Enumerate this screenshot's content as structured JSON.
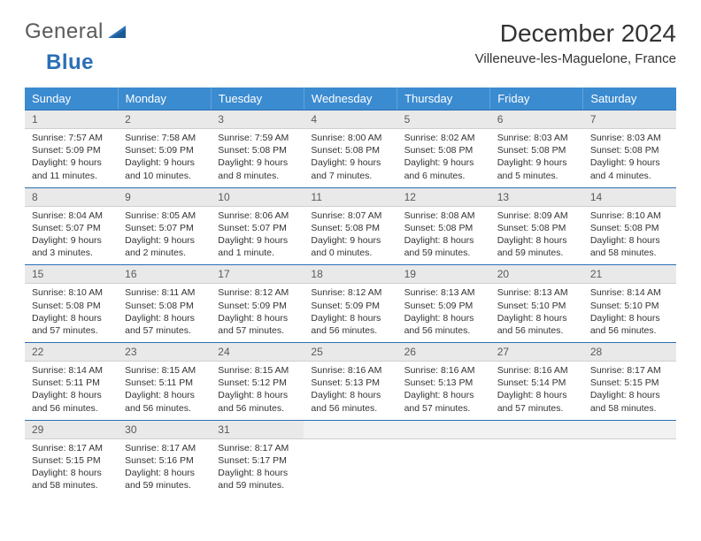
{
  "logo": {
    "text_part1": "General",
    "text_part2": "Blue",
    "icon_color": "#2a6fb5"
  },
  "title": "December 2024",
  "location": "Villeneuve-les-Maguelone, France",
  "colors": {
    "header_bg": "#3b8bd0",
    "header_fg": "#ffffff",
    "daynum_bg": "#e9e9e9",
    "daynum_divider": "#2a6fb5",
    "text": "#333333"
  },
  "day_headers": [
    "Sunday",
    "Monday",
    "Tuesday",
    "Wednesday",
    "Thursday",
    "Friday",
    "Saturday"
  ],
  "weeks": [
    [
      {
        "n": "1",
        "sr": "Sunrise: 7:57 AM",
        "ss": "Sunset: 5:09 PM",
        "dl": "Daylight: 9 hours and 11 minutes."
      },
      {
        "n": "2",
        "sr": "Sunrise: 7:58 AM",
        "ss": "Sunset: 5:09 PM",
        "dl": "Daylight: 9 hours and 10 minutes."
      },
      {
        "n": "3",
        "sr": "Sunrise: 7:59 AM",
        "ss": "Sunset: 5:08 PM",
        "dl": "Daylight: 9 hours and 8 minutes."
      },
      {
        "n": "4",
        "sr": "Sunrise: 8:00 AM",
        "ss": "Sunset: 5:08 PM",
        "dl": "Daylight: 9 hours and 7 minutes."
      },
      {
        "n": "5",
        "sr": "Sunrise: 8:02 AM",
        "ss": "Sunset: 5:08 PM",
        "dl": "Daylight: 9 hours and 6 minutes."
      },
      {
        "n": "6",
        "sr": "Sunrise: 8:03 AM",
        "ss": "Sunset: 5:08 PM",
        "dl": "Daylight: 9 hours and 5 minutes."
      },
      {
        "n": "7",
        "sr": "Sunrise: 8:03 AM",
        "ss": "Sunset: 5:08 PM",
        "dl": "Daylight: 9 hours and 4 minutes."
      }
    ],
    [
      {
        "n": "8",
        "sr": "Sunrise: 8:04 AM",
        "ss": "Sunset: 5:07 PM",
        "dl": "Daylight: 9 hours and 3 minutes."
      },
      {
        "n": "9",
        "sr": "Sunrise: 8:05 AM",
        "ss": "Sunset: 5:07 PM",
        "dl": "Daylight: 9 hours and 2 minutes."
      },
      {
        "n": "10",
        "sr": "Sunrise: 8:06 AM",
        "ss": "Sunset: 5:07 PM",
        "dl": "Daylight: 9 hours and 1 minute."
      },
      {
        "n": "11",
        "sr": "Sunrise: 8:07 AM",
        "ss": "Sunset: 5:08 PM",
        "dl": "Daylight: 9 hours and 0 minutes."
      },
      {
        "n": "12",
        "sr": "Sunrise: 8:08 AM",
        "ss": "Sunset: 5:08 PM",
        "dl": "Daylight: 8 hours and 59 minutes."
      },
      {
        "n": "13",
        "sr": "Sunrise: 8:09 AM",
        "ss": "Sunset: 5:08 PM",
        "dl": "Daylight: 8 hours and 59 minutes."
      },
      {
        "n": "14",
        "sr": "Sunrise: 8:10 AM",
        "ss": "Sunset: 5:08 PM",
        "dl": "Daylight: 8 hours and 58 minutes."
      }
    ],
    [
      {
        "n": "15",
        "sr": "Sunrise: 8:10 AM",
        "ss": "Sunset: 5:08 PM",
        "dl": "Daylight: 8 hours and 57 minutes."
      },
      {
        "n": "16",
        "sr": "Sunrise: 8:11 AM",
        "ss": "Sunset: 5:08 PM",
        "dl": "Daylight: 8 hours and 57 minutes."
      },
      {
        "n": "17",
        "sr": "Sunrise: 8:12 AM",
        "ss": "Sunset: 5:09 PM",
        "dl": "Daylight: 8 hours and 57 minutes."
      },
      {
        "n": "18",
        "sr": "Sunrise: 8:12 AM",
        "ss": "Sunset: 5:09 PM",
        "dl": "Daylight: 8 hours and 56 minutes."
      },
      {
        "n": "19",
        "sr": "Sunrise: 8:13 AM",
        "ss": "Sunset: 5:09 PM",
        "dl": "Daylight: 8 hours and 56 minutes."
      },
      {
        "n": "20",
        "sr": "Sunrise: 8:13 AM",
        "ss": "Sunset: 5:10 PM",
        "dl": "Daylight: 8 hours and 56 minutes."
      },
      {
        "n": "21",
        "sr": "Sunrise: 8:14 AM",
        "ss": "Sunset: 5:10 PM",
        "dl": "Daylight: 8 hours and 56 minutes."
      }
    ],
    [
      {
        "n": "22",
        "sr": "Sunrise: 8:14 AM",
        "ss": "Sunset: 5:11 PM",
        "dl": "Daylight: 8 hours and 56 minutes."
      },
      {
        "n": "23",
        "sr": "Sunrise: 8:15 AM",
        "ss": "Sunset: 5:11 PM",
        "dl": "Daylight: 8 hours and 56 minutes."
      },
      {
        "n": "24",
        "sr": "Sunrise: 8:15 AM",
        "ss": "Sunset: 5:12 PM",
        "dl": "Daylight: 8 hours and 56 minutes."
      },
      {
        "n": "25",
        "sr": "Sunrise: 8:16 AM",
        "ss": "Sunset: 5:13 PM",
        "dl": "Daylight: 8 hours and 56 minutes."
      },
      {
        "n": "26",
        "sr": "Sunrise: 8:16 AM",
        "ss": "Sunset: 5:13 PM",
        "dl": "Daylight: 8 hours and 57 minutes."
      },
      {
        "n": "27",
        "sr": "Sunrise: 8:16 AM",
        "ss": "Sunset: 5:14 PM",
        "dl": "Daylight: 8 hours and 57 minutes."
      },
      {
        "n": "28",
        "sr": "Sunrise: 8:17 AM",
        "ss": "Sunset: 5:15 PM",
        "dl": "Daylight: 8 hours and 58 minutes."
      }
    ],
    [
      {
        "n": "29",
        "sr": "Sunrise: 8:17 AM",
        "ss": "Sunset: 5:15 PM",
        "dl": "Daylight: 8 hours and 58 minutes."
      },
      {
        "n": "30",
        "sr": "Sunrise: 8:17 AM",
        "ss": "Sunset: 5:16 PM",
        "dl": "Daylight: 8 hours and 59 minutes."
      },
      {
        "n": "31",
        "sr": "Sunrise: 8:17 AM",
        "ss": "Sunset: 5:17 PM",
        "dl": "Daylight: 8 hours and 59 minutes."
      },
      null,
      null,
      null,
      null
    ]
  ]
}
